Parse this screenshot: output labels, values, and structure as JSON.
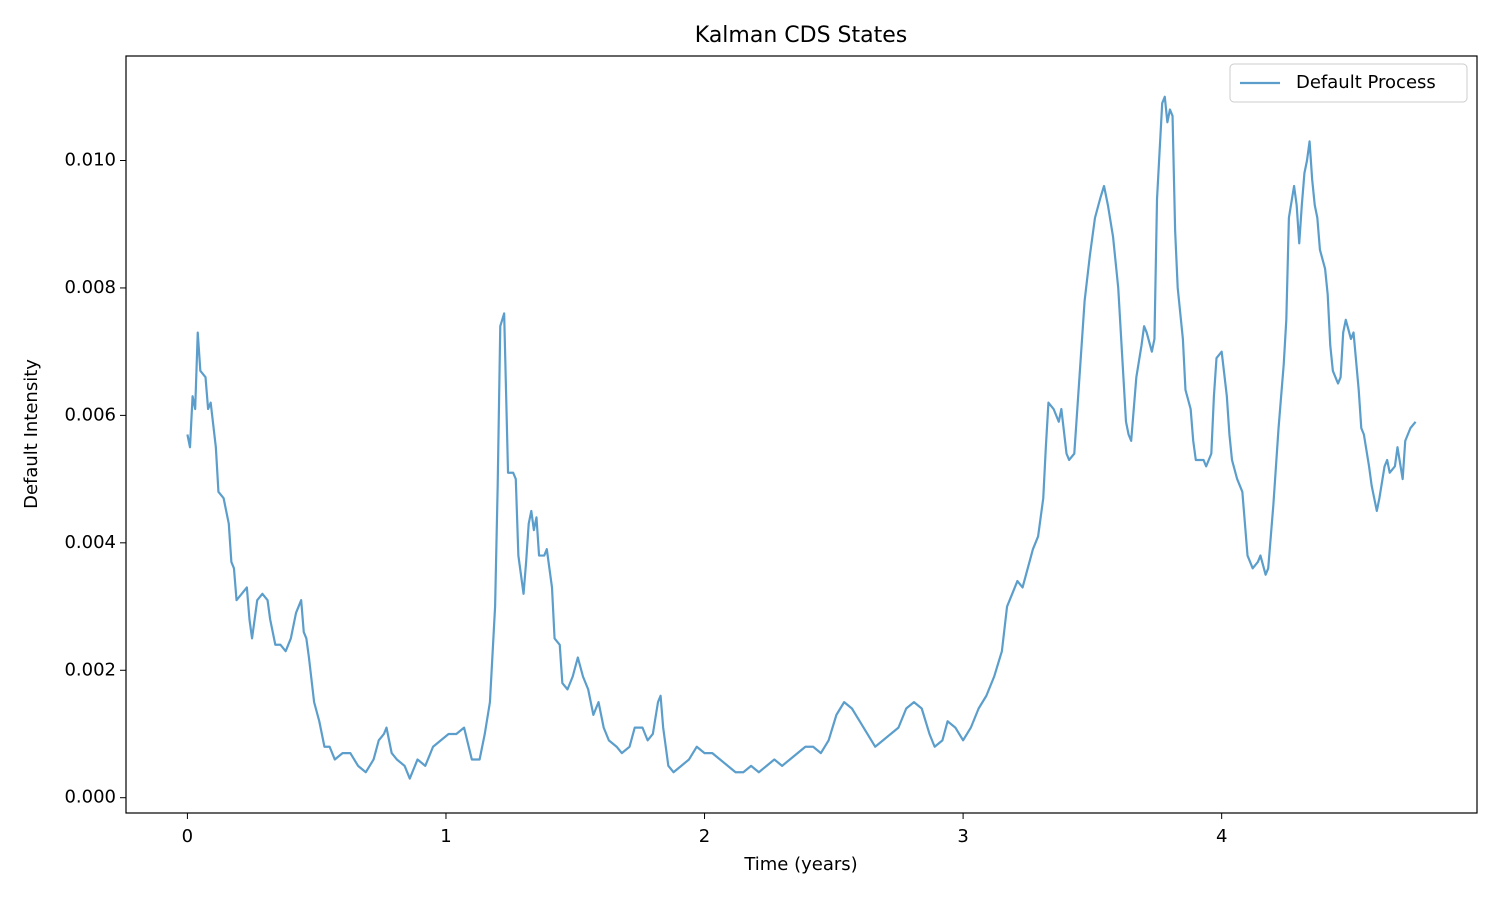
{
  "chart_data": {
    "type": "line",
    "title": "Kalman CDS States",
    "xlabel": "Time (years)",
    "ylabel": "Default Intensity",
    "legend": "upper right",
    "xlim": [
      -0.2375,
      4.9875
    ],
    "xticks": [
      0,
      1,
      2,
      3,
      4
    ],
    "ylim": [
      -0.00024,
      0.01164
    ],
    "yticks": [
      {
        "value": 0,
        "label": "0.000"
      },
      {
        "value": 0.002,
        "label": "0.002"
      },
      {
        "value": 0.004,
        "label": "0.004"
      },
      {
        "value": 0.006,
        "label": "0.006"
      },
      {
        "value": 0.008,
        "label": "0.008"
      },
      {
        "value": 0.01,
        "label": "0.010"
      }
    ],
    "x": [
      0,
      0.01,
      0.02,
      0.03,
      0.04,
      0.05,
      0.07,
      0.08,
      0.09,
      0.11,
      0.12,
      0.14,
      0.16,
      0.17,
      0.18,
      0.19,
      0.21,
      0.23,
      0.24,
      0.25,
      0.27,
      0.29,
      0.31,
      0.32,
      0.34,
      0.36,
      0.38,
      0.4,
      0.42,
      0.43,
      0.44,
      0.45,
      0.46,
      0.47,
      0.49,
      0.51,
      0.53,
      0.55,
      0.57,
      0.6,
      0.63,
      0.66,
      0.69,
      0.72,
      0.74,
      0.76,
      0.77,
      0.79,
      0.81,
      0.84,
      0.86,
      0.89,
      0.92,
      0.95,
      0.98,
      1.01,
      1.04,
      1.07,
      1.1,
      1.13,
      1.15,
      1.17,
      1.19,
      1.2,
      1.21,
      1.225,
      1.24,
      1.26,
      1.27,
      1.28,
      1.29,
      1.3,
      1.31,
      1.32,
      1.33,
      1.34,
      1.35,
      1.36,
      1.38,
      1.39,
      1.41,
      1.42,
      1.44,
      1.45,
      1.47,
      1.49,
      1.51,
      1.53,
      1.55,
      1.57,
      1.59,
      1.61,
      1.63,
      1.66,
      1.68,
      1.71,
      1.73,
      1.76,
      1.78,
      1.8,
      1.82,
      1.83,
      1.84,
      1.86,
      1.88,
      1.91,
      1.94,
      1.97,
      2.0,
      2.03,
      2.06,
      2.09,
      2.12,
      2.15,
      2.18,
      2.21,
      2.24,
      2.27,
      2.3,
      2.33,
      2.36,
      2.39,
      2.42,
      2.45,
      2.48,
      2.51,
      2.54,
      2.57,
      2.6,
      2.63,
      2.66,
      2.69,
      2.72,
      2.75,
      2.78,
      2.81,
      2.84,
      2.87,
      2.89,
      2.92,
      2.94,
      2.97,
      3.0,
      3.03,
      3.06,
      3.09,
      3.12,
      3.15,
      3.17,
      3.19,
      3.21,
      3.23,
      3.25,
      3.27,
      3.29,
      3.31,
      3.32,
      3.33,
      3.35,
      3.37,
      3.38,
      3.4,
      3.41,
      3.43,
      3.45,
      3.47,
      3.49,
      3.51,
      3.53,
      3.545,
      3.56,
      3.58,
      3.6,
      3.62,
      3.63,
      3.64,
      3.65,
      3.67,
      3.69,
      3.7,
      3.71,
      3.73,
      3.74,
      3.75,
      3.77,
      3.78,
      3.79,
      3.8,
      3.81,
      3.82,
      3.83,
      3.85,
      3.86,
      3.88,
      3.89,
      3.9,
      3.93,
      3.94,
      3.96,
      3.97,
      3.98,
      4.0,
      4.02,
      4.03,
      4.04,
      4.06,
      4.08,
      4.09,
      4.1,
      4.12,
      4.14,
      4.15,
      4.17,
      4.18,
      4.2,
      4.21,
      4.22,
      4.24,
      4.25,
      4.26,
      4.28,
      4.29,
      4.3,
      4.31,
      4.32,
      4.33,
      4.34,
      4.35,
      4.36,
      4.37,
      4.38,
      4.4,
      4.41,
      4.42,
      4.43,
      4.45,
      4.46,
      4.47,
      4.48,
      4.5,
      4.51,
      4.53,
      4.54,
      4.55,
      4.57,
      4.58,
      4.6,
      4.61,
      4.63,
      4.64,
      4.65,
      4.67,
      4.68,
      4.7,
      4.71,
      4.73,
      4.75
    ],
    "series": [
      {
        "name": "Default Process",
        "color": "#5c9ecb",
        "values": [
          0.0057,
          0.0055,
          0.0063,
          0.0061,
          0.0073,
          0.0067,
          0.0066,
          0.0061,
          0.0062,
          0.0055,
          0.0048,
          0.0047,
          0.0043,
          0.0037,
          0.0036,
          0.0031,
          0.0032,
          0.0033,
          0.0028,
          0.0025,
          0.0031,
          0.0032,
          0.0031,
          0.0028,
          0.0024,
          0.0024,
          0.0023,
          0.0025,
          0.0029,
          0.003,
          0.0031,
          0.0026,
          0.0025,
          0.0022,
          0.0015,
          0.0012,
          0.0008,
          0.0008,
          0.0006,
          0.0007,
          0.0007,
          0.0005,
          0.0004,
          0.0006,
          0.0009,
          0.001,
          0.0011,
          0.0007,
          0.0006,
          0.0005,
          0.0003,
          0.0006,
          0.0005,
          0.0008,
          0.0009,
          0.001,
          0.001,
          0.0011,
          0.0006,
          0.0006,
          0.001,
          0.0015,
          0.003,
          0.0049,
          0.0074,
          0.0076,
          0.0051,
          0.0051,
          0.005,
          0.0038,
          0.0035,
          0.0032,
          0.0037,
          0.0043,
          0.0045,
          0.0042,
          0.0044,
          0.0038,
          0.0038,
          0.0039,
          0.0033,
          0.0025,
          0.0024,
          0.0018,
          0.0017,
          0.0019,
          0.0022,
          0.0019,
          0.0017,
          0.0013,
          0.0015,
          0.0011,
          0.0009,
          0.0008,
          0.0007,
          0.0008,
          0.0011,
          0.0011,
          0.0009,
          0.001,
          0.0015,
          0.0016,
          0.0011,
          0.0005,
          0.0004,
          0.0005,
          0.0006,
          0.0008,
          0.0007,
          0.0007,
          0.0006,
          0.0005,
          0.0004,
          0.0004,
          0.0005,
          0.0004,
          0.0005,
          0.0006,
          0.0005,
          0.0006,
          0.0007,
          0.0008,
          0.0008,
          0.0007,
          0.0009,
          0.0013,
          0.0015,
          0.0014,
          0.0012,
          0.001,
          0.0008,
          0.0009,
          0.001,
          0.0011,
          0.0014,
          0.0015,
          0.0014,
          0.001,
          0.0008,
          0.0009,
          0.0012,
          0.0011,
          0.0009,
          0.0011,
          0.0014,
          0.0016,
          0.0019,
          0.0023,
          0.003,
          0.0032,
          0.0034,
          0.0033,
          0.0036,
          0.0039,
          0.0041,
          0.0047,
          0.0055,
          0.0062,
          0.0061,
          0.0059,
          0.0061,
          0.0054,
          0.0053,
          0.0054,
          0.0066,
          0.0078,
          0.0085,
          0.0091,
          0.0094,
          0.0096,
          0.0093,
          0.0088,
          0.008,
          0.0066,
          0.0059,
          0.0057,
          0.0056,
          0.0066,
          0.0071,
          0.0074,
          0.0073,
          0.007,
          0.0072,
          0.0094,
          0.0109,
          0.011,
          0.0106,
          0.0108,
          0.0107,
          0.0089,
          0.008,
          0.0072,
          0.0064,
          0.0061,
          0.0056,
          0.0053,
          0.0053,
          0.0052,
          0.0054,
          0.0063,
          0.0069,
          0.007,
          0.0063,
          0.0057,
          0.0053,
          0.005,
          0.0048,
          0.0043,
          0.0038,
          0.0036,
          0.0037,
          0.0038,
          0.0035,
          0.0036,
          0.0046,
          0.0052,
          0.0058,
          0.0068,
          0.0075,
          0.0091,
          0.0096,
          0.0093,
          0.0087,
          0.0093,
          0.0098,
          0.01,
          0.0103,
          0.0097,
          0.0093,
          0.0091,
          0.0086,
          0.0083,
          0.0079,
          0.0071,
          0.0067,
          0.0065,
          0.0066,
          0.0073,
          0.0075,
          0.0072,
          0.0073,
          0.0064,
          0.0058,
          0.0057,
          0.0052,
          0.0049,
          0.0045,
          0.0047,
          0.0052,
          0.0053,
          0.0051,
          0.0052,
          0.0055,
          0.005,
          0.0056,
          0.0058,
          0.0059
        ]
      }
    ]
  }
}
